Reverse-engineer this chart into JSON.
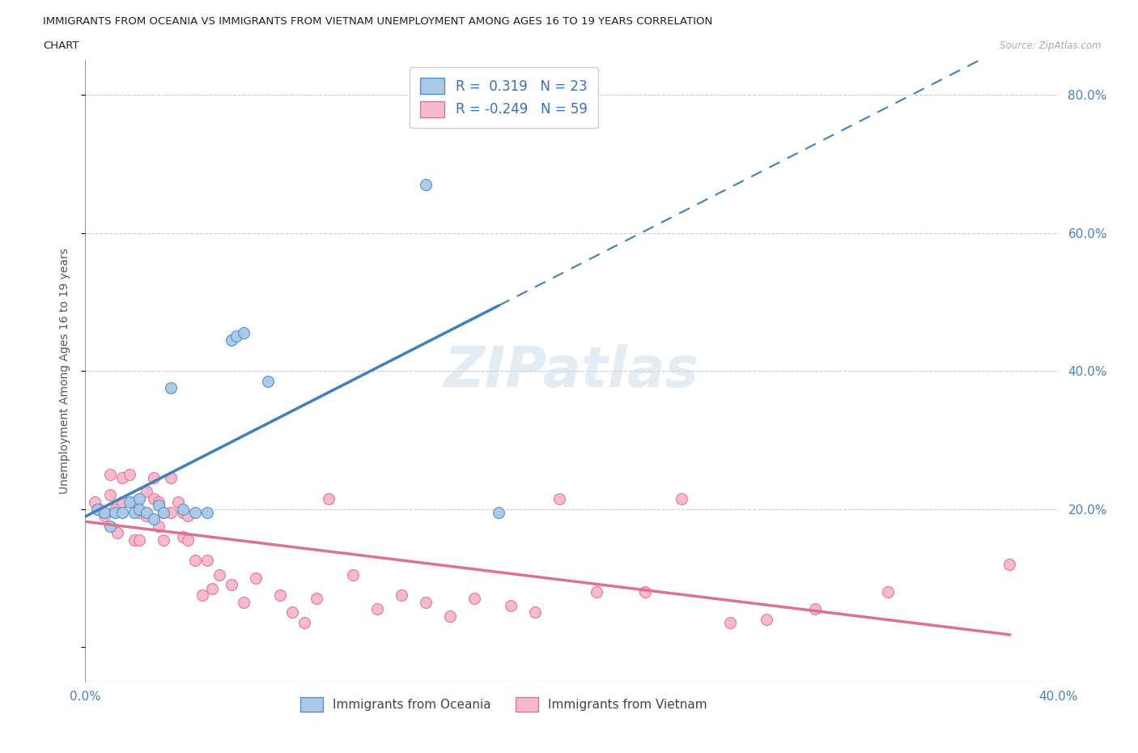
{
  "title_line1": "IMMIGRANTS FROM OCEANIA VS IMMIGRANTS FROM VIETNAM UNEMPLOYMENT AMONG AGES 16 TO 19 YEARS CORRELATION",
  "title_line2": "CHART",
  "source_text": "Source: ZipAtlas.com",
  "ylabel": "Unemployment Among Ages 16 to 19 years",
  "xlim": [
    0.0,
    0.4
  ],
  "ylim": [
    -0.05,
    0.85
  ],
  "oceania_color": "#aac8e8",
  "oceania_edge_color": "#5090c8",
  "oceania_line_color": "#4080b8",
  "vietnam_color": "#f8b8cc",
  "vietnam_edge_color": "#e87090",
  "vietnam_line_color": "#e07090",
  "R_oceania": 0.319,
  "N_oceania": 23,
  "R_vietnam": -0.249,
  "N_vietnam": 59,
  "oceania_x": [
    0.005,
    0.008,
    0.01,
    0.012,
    0.015,
    0.018,
    0.02,
    0.022,
    0.022,
    0.025,
    0.028,
    0.03,
    0.032,
    0.035,
    0.04,
    0.045,
    0.05,
    0.06,
    0.062,
    0.065,
    0.075,
    0.14,
    0.17
  ],
  "oceania_y": [
    0.2,
    0.195,
    0.175,
    0.195,
    0.195,
    0.21,
    0.195,
    0.215,
    0.2,
    0.195,
    0.185,
    0.205,
    0.195,
    0.375,
    0.2,
    0.195,
    0.195,
    0.445,
    0.45,
    0.455,
    0.385,
    0.67,
    0.195
  ],
  "vietnam_x": [
    0.004,
    0.006,
    0.008,
    0.01,
    0.01,
    0.012,
    0.013,
    0.015,
    0.015,
    0.018,
    0.02,
    0.02,
    0.022,
    0.022,
    0.025,
    0.025,
    0.028,
    0.028,
    0.03,
    0.03,
    0.032,
    0.032,
    0.035,
    0.035,
    0.038,
    0.04,
    0.04,
    0.042,
    0.042,
    0.045,
    0.048,
    0.05,
    0.052,
    0.055,
    0.06,
    0.065,
    0.07,
    0.08,
    0.085,
    0.09,
    0.095,
    0.1,
    0.11,
    0.12,
    0.13,
    0.14,
    0.15,
    0.16,
    0.175,
    0.185,
    0.195,
    0.21,
    0.23,
    0.245,
    0.265,
    0.28,
    0.3,
    0.33,
    0.38
  ],
  "vietnam_y": [
    0.21,
    0.2,
    0.19,
    0.22,
    0.25,
    0.2,
    0.165,
    0.245,
    0.21,
    0.25,
    0.21,
    0.155,
    0.195,
    0.155,
    0.225,
    0.19,
    0.215,
    0.245,
    0.175,
    0.21,
    0.195,
    0.155,
    0.245,
    0.195,
    0.21,
    0.16,
    0.195,
    0.19,
    0.155,
    0.125,
    0.075,
    0.125,
    0.085,
    0.105,
    0.09,
    0.065,
    0.1,
    0.075,
    0.05,
    0.035,
    0.07,
    0.215,
    0.105,
    0.055,
    0.075,
    0.065,
    0.045,
    0.07,
    0.06,
    0.05,
    0.215,
    0.08,
    0.08,
    0.215,
    0.035,
    0.04,
    0.055,
    0.08,
    0.12
  ]
}
